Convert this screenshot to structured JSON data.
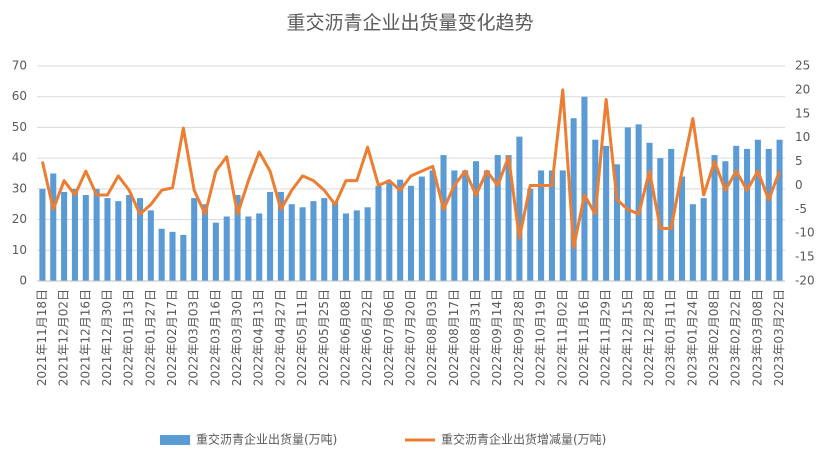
{
  "chart_data": {
    "type": "bar_line",
    "title": "重交沥青企业出货量变化趋势",
    "categories": [
      "2021年11月18日",
      null,
      "2021年12月02日",
      null,
      "2021年12月16日",
      null,
      "2021年12月30日",
      null,
      "2022年01月13日",
      null,
      "2022年01月27日",
      null,
      "2022年02月17日",
      null,
      "2022年03月03日",
      null,
      "2022年03月16日",
      null,
      "2022年03月30日",
      null,
      "2022年04月13日",
      null,
      "2022年04月27日",
      null,
      "2022年05月11日",
      null,
      "2022年05月25日",
      null,
      "2022年06月08日",
      null,
      "2022年06月22日",
      null,
      "2022年07月06日",
      null,
      "2022年07月20日",
      null,
      "2022年08月03日",
      null,
      "2022年08月17日",
      null,
      "2022年08月31日",
      null,
      "2022年09月14日",
      null,
      "2022年09月28日",
      null,
      "2022年10月19日",
      null,
      "2022年11月02日",
      null,
      "2022年11月16日",
      null,
      "2022年11月29日",
      null,
      "2022年12月15日",
      null,
      "2022年12月28日",
      null,
      "2023年01月11日",
      null,
      "2023年01月24日",
      null,
      "2023年02月08日",
      null,
      "2023年02月22日",
      null,
      "2023年03月08日",
      null,
      "2023年03月22日"
    ],
    "series": [
      {
        "name": "重交沥青企业出货量(万吨)",
        "color": "#5b9bd5",
        "kind": "bar",
        "values": [
          30,
          35,
          29,
          30,
          28,
          30,
          27,
          26,
          28,
          27,
          23,
          17,
          16,
          15,
          27,
          25,
          19,
          21,
          28,
          21,
          22,
          29,
          29,
          25,
          24,
          26,
          27,
          26,
          22,
          23,
          24,
          31,
          32,
          33,
          31,
          34,
          36,
          41,
          36,
          36,
          39,
          36,
          41,
          41,
          47,
          30,
          36,
          36,
          36,
          53,
          60,
          46,
          44,
          38,
          50,
          51,
          45,
          40,
          43,
          34,
          25,
          27,
          41,
          39,
          44,
          43,
          46,
          43,
          46
        ]
      },
      {
        "name": "重交沥青企业出货增减量(万吨)",
        "color": "#ed7d31",
        "kind": "line",
        "axis": "y2",
        "values": [
          5,
          -5,
          1,
          -2,
          3,
          -2,
          -2,
          2,
          -1,
          -6,
          -4,
          -1,
          -0.5,
          12,
          -1,
          -6,
          3,
          6,
          -6,
          1,
          7,
          3,
          -5,
          -1,
          2,
          1,
          -1,
          -4,
          1,
          1,
          8,
          0,
          1,
          -1,
          2,
          3,
          4,
          -5,
          0,
          3,
          -2,
          3,
          0,
          6,
          -11,
          0,
          0,
          0,
          20,
          -13,
          -2,
          -6,
          18,
          -3,
          -5,
          -6,
          3,
          -9,
          -9,
          3,
          14,
          -2,
          5,
          -1,
          3,
          -1,
          3,
          -3,
          3
        ]
      }
    ],
    "ylim": [
      0,
      70
    ],
    "yticks": [
      0,
      10,
      20,
      30,
      40,
      50,
      60,
      70
    ],
    "y2lim": [
      -20,
      25
    ],
    "y2ticks": [
      -20,
      -15,
      -10,
      -5,
      0,
      5,
      10,
      15,
      20,
      25
    ],
    "grid": true,
    "legend": "bottom"
  }
}
